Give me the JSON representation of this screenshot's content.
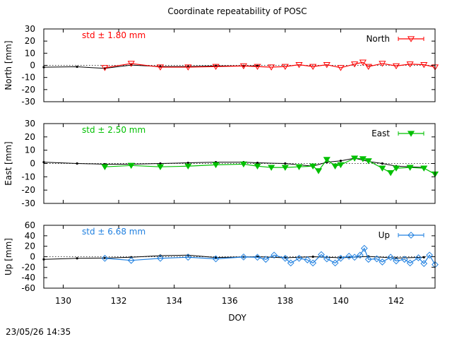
{
  "title": "Coordinate repeatability of POSC",
  "timestamp": "23/05/26 14:35",
  "xlabel": "DOY",
  "xlim": [
    129.3,
    143.4
  ],
  "xticks": [
    130,
    132,
    134,
    136,
    138,
    140,
    142
  ],
  "chart_data": [
    {
      "type": "line",
      "ylabel": "North [mm]",
      "ylim": [
        -30,
        30
      ],
      "yticks": [
        -30,
        -20,
        -10,
        0,
        10,
        20,
        30
      ],
      "std_text": "std ± 1.80 mm",
      "std_color": "#ff0000",
      "legend": "North",
      "legend_position": "top-right",
      "marker": "triangle-down-open",
      "colors": {
        "series": "#ff0000",
        "reference": "#000000"
      },
      "reference": {
        "x": [
          129.3,
          130.5,
          131.5,
          132.45,
          133.5,
          134.5,
          135.5,
          136.5,
          137.0
        ],
        "y": [
          -1.5,
          -1.2,
          -2.5,
          0.2,
          -1.0,
          -1.0,
          -0.5,
          -0.5,
          -0.5
        ]
      },
      "series": {
        "x": [
          131.5,
          132.45,
          133.5,
          134.5,
          135.5,
          136.5,
          137.0,
          137.5,
          138.0,
          138.5,
          139.0,
          139.5,
          140.0,
          140.5,
          140.8,
          141.0,
          141.5,
          142.0,
          142.5,
          143.0,
          143.4
        ],
        "y": [
          -2.0,
          1.5,
          -1.5,
          -1.5,
          -1.0,
          -0.5,
          -1.0,
          -1.5,
          -1.0,
          0.5,
          -1.0,
          0.5,
          -2.0,
          1.0,
          2.5,
          -1.0,
          1.5,
          -0.5,
          1.0,
          0.5,
          -1.5
        ]
      }
    },
    {
      "type": "line",
      "ylabel": "East [mm]",
      "ylim": [
        -30,
        30
      ],
      "yticks": [
        -30,
        -20,
        -10,
        0,
        10,
        20,
        30
      ],
      "std_text": "std ± 2.50 mm",
      "std_color": "#00c000",
      "legend": "East",
      "legend_position": "top-right",
      "marker": "triangle-down-filled",
      "colors": {
        "series": "#00c000",
        "reference": "#000000"
      },
      "reference": {
        "x": [
          129.3,
          130.5,
          131.5,
          132.45,
          133.5,
          134.5,
          135.5,
          136.5,
          137.0,
          138.0,
          139.0,
          139.5,
          140.0,
          140.5,
          141.0,
          141.5,
          142.0,
          143.0
        ],
        "y": [
          1.0,
          0.0,
          -0.5,
          -0.5,
          0.0,
          0.5,
          1.0,
          1.0,
          0.5,
          0.0,
          -2.0,
          1.0,
          2.0,
          4.0,
          1.5,
          0.0,
          -2.0,
          -3.0
        ]
      },
      "series": {
        "x": [
          131.5,
          132.45,
          133.5,
          134.5,
          135.5,
          136.5,
          137.0,
          137.5,
          138.0,
          138.5,
          139.0,
          139.2,
          139.5,
          139.8,
          140.0,
          140.5,
          140.8,
          141.0,
          141.5,
          141.8,
          142.0,
          142.5,
          143.0,
          143.4
        ],
        "y": [
          -2.5,
          -1.5,
          -2.5,
          -2.0,
          -1.0,
          -0.5,
          -2.0,
          -3.0,
          -3.0,
          -2.5,
          -2.0,
          -5.5,
          3.0,
          -2.0,
          -1.0,
          4.0,
          3.5,
          2.0,
          -3.5,
          -7.0,
          -3.5,
          -3.0,
          -3.5,
          -8.0
        ]
      }
    },
    {
      "type": "line",
      "ylabel": "Up [mm]",
      "ylim": [
        -60,
        60
      ],
      "yticks": [
        -60,
        -40,
        -20,
        0,
        20,
        40,
        60
      ],
      "std_text": "std ± 6.68 mm",
      "std_color": "#2080e0",
      "legend": "Up",
      "legend_position": "top-right",
      "marker": "diamond-open",
      "colors": {
        "series": "#2080e0",
        "reference": "#000000"
      },
      "reference": {
        "x": [
          129.3,
          130.5,
          131.5,
          132.45,
          133.5,
          134.5,
          135.5,
          136.5,
          137.0,
          138.0,
          139.0,
          140.0,
          141.0,
          142.0,
          143.0
        ],
        "y": [
          -5.0,
          -3.0,
          -2.5,
          -1.0,
          2.0,
          3.0,
          -1.5,
          -0.5,
          0.0,
          -2.0,
          0.0,
          -2.0,
          0.5,
          -2.5,
          -1.0
        ]
      },
      "series": {
        "x": [
          131.5,
          132.45,
          133.5,
          134.5,
          135.5,
          136.5,
          137.0,
          137.3,
          137.6,
          138.0,
          138.2,
          138.5,
          138.8,
          139.0,
          139.3,
          139.5,
          139.8,
          140.0,
          140.3,
          140.5,
          140.7,
          140.85,
          141.0,
          141.3,
          141.5,
          141.8,
          142.0,
          142.3,
          142.5,
          142.8,
          143.0,
          143.2,
          143.4
        ],
        "y": [
          -3.0,
          -7.0,
          -3.0,
          -1.0,
          -4.0,
          -0.5,
          -1.0,
          -5.0,
          3.0,
          -3.0,
          -12.0,
          -3.0,
          -6.0,
          -12.0,
          4.0,
          -4.0,
          -12.0,
          -3.0,
          1.0,
          -1.0,
          3.0,
          16.0,
          -5.0,
          -4.0,
          -10.0,
          -1.0,
          -8.0,
          -5.0,
          -12.0,
          -2.0,
          -13.0,
          3.0,
          -15.0
        ]
      }
    }
  ]
}
